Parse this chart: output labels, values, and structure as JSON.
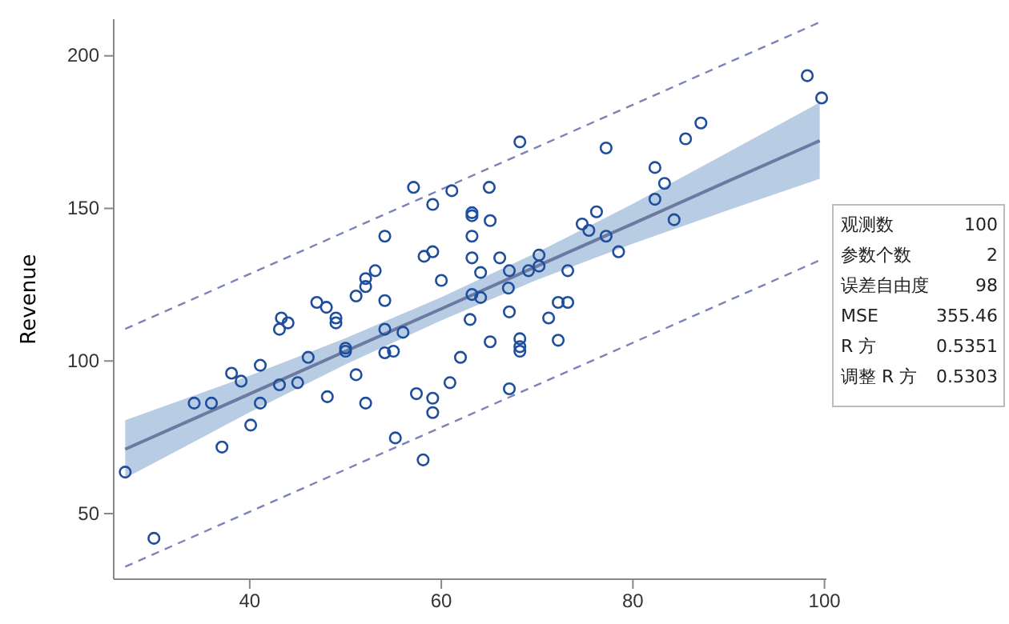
{
  "chart_data": {
    "type": "scatter",
    "ylabel": "Revenue",
    "xlim": [
      25.8,
      100.2
    ],
    "ylim": [
      28.5,
      212
    ],
    "xticks": [
      40,
      60,
      80,
      100
    ],
    "yticks": [
      50,
      100,
      150,
      200
    ],
    "grid": false,
    "series": [
      {
        "type": "line",
        "color": "#6a7aa0",
        "line_style": "solid",
        "marker": "none",
        "x": [
          27,
          40,
          50,
          60,
          70,
          80,
          90,
          99.5
        ],
        "values": [
          71.1,
          89.2,
          103.2,
          117.1,
          131.1,
          145.0,
          159.0,
          172.2
        ],
        "lower": [
          61.6,
          83.2,
          98.9,
          113.3,
          126.6,
          138.5,
          149.5,
          159.7
        ],
        "upper": [
          80.6,
          95.2,
          107.5,
          120.9,
          135.6,
          151.5,
          168.5,
          184.7
        ]
      },
      {
        "type": "line",
        "color": "#7b84b8",
        "line_style": "dashed",
        "marker": "none",
        "x": [
          27,
          99.5
        ],
        "values": [
          110.5,
          211
        ]
      },
      {
        "type": "line",
        "color": "#7b84b8",
        "line_style": "dashed",
        "marker": "none",
        "x": [
          27,
          99.5
        ],
        "values": [
          32.6,
          133
        ]
      },
      {
        "color": "#1f4e9c",
        "marker": "circle",
        "x": [
          27,
          30,
          34.2,
          36,
          37.1,
          38.1,
          39.1,
          40.1,
          41.1,
          41.1,
          43.1,
          43.1,
          43.3,
          44,
          45,
          46.1,
          47,
          48,
          48.1,
          49,
          49,
          50,
          50,
          51.1,
          51.1,
          52.1,
          52.1,
          52.1,
          53.1,
          54.1,
          54.1,
          54.1,
          54.1,
          55,
          55.2,
          56,
          57.1,
          57.4,
          58.1,
          58.2,
          59.1,
          59.1,
          59.1,
          59.1,
          60,
          60.9,
          61.1,
          62,
          63,
          63.2,
          63.2,
          63.2,
          63.2,
          63.2,
          64.1,
          64.1,
          65,
          65.1,
          65.1,
          66.1,
          67,
          67.1,
          67.1,
          67.1,
          68.2,
          68.2,
          68.2,
          68.2,
          69.1,
          70.2,
          70.2,
          71.2,
          72.2,
          72.2,
          73.2,
          73.2,
          74.7,
          75.4,
          76.2,
          77.2,
          77.2,
          78.5,
          82.3,
          83.3,
          82.3,
          84.3,
          85.5,
          87.1,
          98.2,
          99.7
        ],
        "values": [
          63.6,
          41.9,
          86.2,
          86.2,
          71.8,
          96,
          93.4,
          79,
          98.6,
          86.2,
          110.4,
          92.2,
          114.1,
          112.5,
          92.9,
          101.2,
          119.2,
          117.6,
          88.3,
          114.1,
          112.5,
          103.2,
          104.2,
          95.5,
          121.3,
          127,
          124.4,
          86.2,
          129.6,
          119.8,
          140.9,
          110.4,
          102.7,
          103.2,
          74.8,
          109.4,
          156.9,
          89.3,
          67.6,
          134.3,
          151.3,
          135.8,
          87.8,
          83.1,
          126.4,
          92.9,
          155.8,
          101.2,
          113.6,
          140.9,
          148.6,
          147.6,
          133.8,
          121.8,
          129,
          120.8,
          156.9,
          146,
          106.3,
          133.8,
          123.9,
          116.1,
          90.9,
          129.6,
          171.8,
          107.3,
          104.7,
          103.2,
          129.6,
          131.1,
          134.7,
          114.1,
          119.2,
          106.8,
          119.2,
          129.6,
          144.9,
          142.8,
          148.9,
          140.9,
          169.8,
          135.8,
          163.4,
          158.2,
          153,
          146.3,
          172.8,
          178,
          193.5,
          186.2
        ]
      }
    ],
    "annotations": [
      "观测数 100",
      "参数个数 2",
      "误差自由度 98",
      "MSE 355.46",
      "R 方 0.5351",
      "调整 R 方 0.5303"
    ]
  }
}
